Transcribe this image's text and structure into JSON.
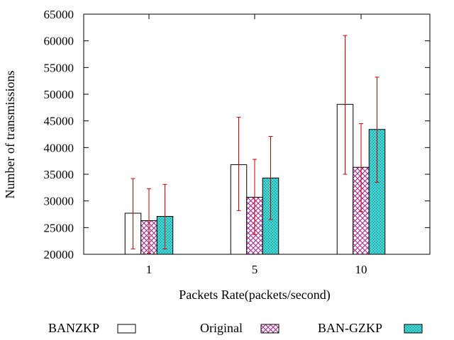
{
  "chart_data": {
    "type": "bar",
    "xlabel": "Packets Rate(packets/second)",
    "ylabel": "Number of transmissions",
    "ylim": [
      20000,
      65000
    ],
    "yticks": [
      20000,
      25000,
      30000,
      35000,
      40000,
      45000,
      50000,
      55000,
      60000,
      65000
    ],
    "categories": [
      "1",
      "5",
      "10"
    ],
    "grid": false,
    "legend_position": "bottom",
    "series": [
      {
        "name": "BANZKP",
        "pattern": "empty",
        "values": [
          27700,
          36800,
          48100
        ],
        "error_low": [
          21000,
          28200,
          35000
        ],
        "error_high": [
          34200,
          45700,
          61000
        ]
      },
      {
        "name": "Original",
        "pattern": "crosshatch-magenta",
        "values": [
          26300,
          30700,
          36300
        ],
        "error_low": [
          20200,
          23700,
          28000
        ],
        "error_high": [
          32300,
          37800,
          44500
        ]
      },
      {
        "name": "BAN-GZKP",
        "pattern": "dots-cyan",
        "values": [
          27100,
          34300,
          43400
        ],
        "error_low": [
          21000,
          26500,
          33500
        ],
        "error_high": [
          33100,
          42100,
          53200
        ]
      }
    ],
    "colors": {
      "error_bar": "#cc0000",
      "original_hatch": "#a0208c",
      "gzkp_fill": "#40d0d0",
      "gzkp_dot": "#008080"
    }
  }
}
